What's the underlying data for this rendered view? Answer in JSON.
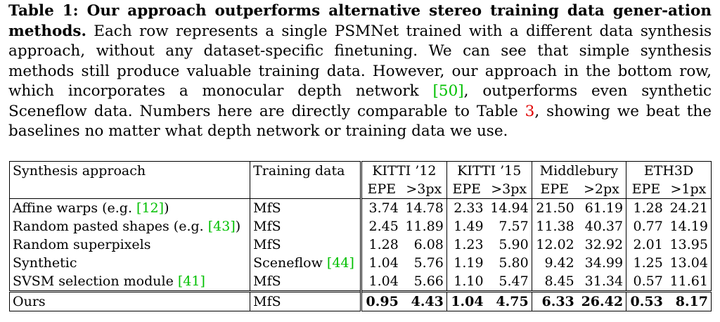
{
  "caption": {
    "label": "Table 1: Our approach outperforms alternative stereo training data gener-ation methods.",
    "text_1": " Each row represents a single PSMNet trained with a different data synthesis approach, without any dataset-specific finetuning. We can see that simple synthesis methods still produce valuable training data. However, our approach in the bottom row, which incorporates a monocular depth network ",
    "ref_1": "[50]",
    "text_2": ", outperforms even synthetic Sceneflow data. Numbers here are directly comparable to Table ",
    "ref_2": "3",
    "text_3": ", showing we beat the baselines no matter what depth network or training data we use."
  },
  "table": {
    "header": {
      "approach": "Synthesis approach",
      "training_data": "Training data",
      "datasets": [
        "KITTI ’12",
        "KITTI ’15",
        "Middlebury",
        "ETH3D"
      ],
      "metrics": [
        [
          "EPE",
          ">3px"
        ],
        [
          "EPE",
          ">3px"
        ],
        [
          "EPE",
          ">2px"
        ],
        [
          "EPE",
          ">1px"
        ]
      ]
    },
    "rows": [
      {
        "name": "Affine warps (e.g. ",
        "ref": "[12]",
        "suffix": ")",
        "data": "MfS",
        "data_ref": "",
        "values": [
          "3.74",
          "14.78",
          "2.33",
          "14.94",
          "21.50",
          "61.19",
          "1.28",
          "24.21"
        ]
      },
      {
        "name": "Random pasted shapes (e.g. ",
        "ref": "[43]",
        "suffix": ")",
        "data": "MfS",
        "data_ref": "",
        "values": [
          "2.45",
          "11.89",
          "1.49",
          "7.57",
          "11.38",
          "40.37",
          "0.77",
          "14.19"
        ]
      },
      {
        "name": "Random superpixels",
        "ref": "",
        "suffix": "",
        "data": "MfS",
        "data_ref": "",
        "values": [
          "1.28",
          "6.08",
          "1.23",
          "5.90",
          "12.02",
          "32.92",
          "2.01",
          "13.95"
        ]
      },
      {
        "name": "Synthetic",
        "ref": "",
        "suffix": "",
        "data": "Sceneflow ",
        "data_ref": "[44]",
        "values": [
          "1.04",
          "5.76",
          "1.19",
          "5.80",
          "9.42",
          "34.99",
          "1.25",
          "13.04"
        ]
      },
      {
        "name": "SVSM selection module ",
        "ref": "[41]",
        "suffix": "",
        "data": "MfS",
        "data_ref": "",
        "values": [
          "1.04",
          "5.66",
          "1.10",
          "5.47",
          "8.45",
          "31.34",
          "0.57",
          "11.61"
        ]
      }
    ],
    "ours": {
      "name": "Ours",
      "data": "MfS",
      "values": [
        "0.95",
        "4.43",
        "1.04",
        "4.75",
        "6.33",
        "26.42",
        "0.53",
        "8.17"
      ]
    }
  }
}
